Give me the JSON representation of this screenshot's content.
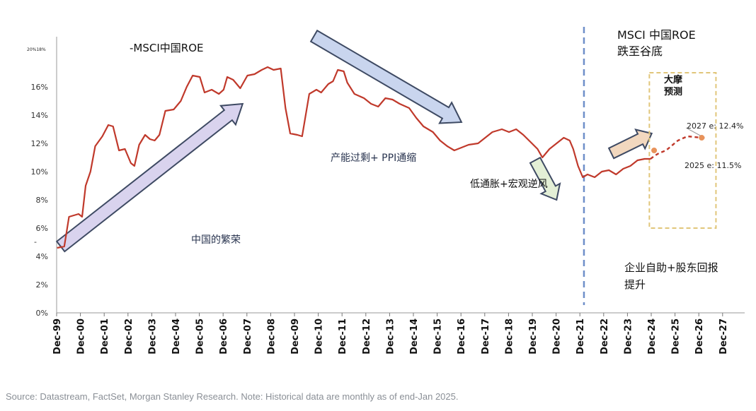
{
  "chart_data": {
    "type": "line",
    "series_label": "-MSCI中国ROE",
    "corner_label": "20%18%",
    "y_min_label": "-",
    "ylim": [
      0,
      18
    ],
    "yticks": [
      0,
      2,
      4,
      6,
      8,
      10,
      12,
      14,
      16
    ],
    "ytick_labels": [
      "0%",
      "2%",
      "4%",
      "6%",
      "8%",
      "10%",
      "12%",
      "14%",
      "16%"
    ],
    "x_labels": [
      "Dec-99",
      "Dec-00",
      "Dec-01",
      "Dec-02",
      "Dec-03",
      "Dec-04",
      "Dec-05",
      "Dec-06",
      "Dec-07",
      "Dec-08",
      "Dec-09",
      "Dec-10",
      "Dec-11",
      "Dec-12",
      "Dec-13",
      "Dec-14",
      "Dec-15",
      "Dec-16",
      "Dec-17",
      "Dec-18",
      "Dec-19",
      "Dec-20",
      "Dec-21",
      "Dec-22",
      "Dec-23",
      "Dec-24",
      "Dec-25",
      "Dec-26",
      "Dec-27"
    ],
    "line_color": "#c0392b",
    "historical": [
      [
        1999.9,
        4.6
      ],
      [
        2000.2,
        4.7
      ],
      [
        2000.4,
        6.8
      ],
      [
        2000.8,
        7.0
      ],
      [
        2000.95,
        6.8
      ],
      [
        2001.1,
        9.0
      ],
      [
        2001.3,
        10.0
      ],
      [
        2001.5,
        11.8
      ],
      [
        2001.8,
        12.5
      ],
      [
        2002.05,
        13.3
      ],
      [
        2002.25,
        13.2
      ],
      [
        2002.5,
        11.5
      ],
      [
        2002.75,
        11.6
      ],
      [
        2003.0,
        10.6
      ],
      [
        2003.15,
        10.4
      ],
      [
        2003.35,
        11.9
      ],
      [
        2003.6,
        12.6
      ],
      [
        2003.8,
        12.3
      ],
      [
        2004.0,
        12.2
      ],
      [
        2004.2,
        12.6
      ],
      [
        2004.45,
        14.3
      ],
      [
        2004.8,
        14.4
      ],
      [
        2005.1,
        15.0
      ],
      [
        2005.35,
        16.0
      ],
      [
        2005.6,
        16.8
      ],
      [
        2005.9,
        16.7
      ],
      [
        2006.1,
        15.6
      ],
      [
        2006.4,
        15.8
      ],
      [
        2006.7,
        15.5
      ],
      [
        2006.9,
        15.8
      ],
      [
        2007.05,
        16.7
      ],
      [
        2007.3,
        16.5
      ],
      [
        2007.6,
        15.9
      ],
      [
        2007.9,
        16.8
      ],
      [
        2008.2,
        16.9
      ],
      [
        2008.5,
        17.2
      ],
      [
        2008.75,
        17.4
      ],
      [
        2009.0,
        17.2
      ],
      [
        2009.3,
        17.3
      ],
      [
        2009.5,
        14.5
      ],
      [
        2009.7,
        12.7
      ],
      [
        2010.0,
        12.6
      ],
      [
        2010.2,
        12.5
      ],
      [
        2010.5,
        15.5
      ],
      [
        2010.8,
        15.8
      ],
      [
        2011.0,
        15.6
      ],
      [
        2011.3,
        16.2
      ],
      [
        2011.5,
        16.4
      ],
      [
        2011.7,
        17.2
      ],
      [
        2011.95,
        17.1
      ],
      [
        2012.1,
        16.3
      ],
      [
        2012.4,
        15.5
      ],
      [
        2012.8,
        15.2
      ],
      [
        2013.1,
        14.8
      ],
      [
        2013.4,
        14.6
      ],
      [
        2013.7,
        15.2
      ],
      [
        2014.0,
        15.1
      ],
      [
        2014.3,
        14.8
      ],
      [
        2014.7,
        14.5
      ],
      [
        2015.0,
        13.8
      ],
      [
        2015.3,
        13.2
      ],
      [
        2015.7,
        12.8
      ],
      [
        2016.0,
        12.2
      ],
      [
        2016.3,
        11.8
      ],
      [
        2016.6,
        11.5
      ],
      [
        2016.9,
        11.7
      ],
      [
        2017.2,
        11.9
      ],
      [
        2017.6,
        12.0
      ],
      [
        2017.9,
        12.4
      ],
      [
        2018.2,
        12.8
      ],
      [
        2018.6,
        13.0
      ],
      [
        2018.9,
        12.8
      ],
      [
        2019.2,
        13.0
      ],
      [
        2019.5,
        12.6
      ],
      [
        2019.8,
        12.1
      ],
      [
        2020.1,
        11.6
      ],
      [
        2020.3,
        11.0
      ],
      [
        2020.6,
        11.6
      ],
      [
        2020.9,
        12.0
      ],
      [
        2021.2,
        12.4
      ],
      [
        2021.45,
        12.2
      ],
      [
        2021.6,
        11.6
      ],
      [
        2021.8,
        10.4
      ],
      [
        2022.0,
        9.6
      ],
      [
        2022.2,
        9.8
      ],
      [
        2022.5,
        9.6
      ],
      [
        2022.8,
        10.0
      ],
      [
        2023.1,
        10.1
      ],
      [
        2023.4,
        9.8
      ],
      [
        2023.7,
        10.2
      ],
      [
        2024.0,
        10.4
      ],
      [
        2024.3,
        10.8
      ],
      [
        2024.6,
        10.9
      ],
      [
        2024.85,
        10.9
      ]
    ],
    "forecast": [
      [
        2024.85,
        10.9
      ],
      [
        2025.0,
        11.1
      ],
      [
        2025.2,
        11.3
      ],
      [
        2025.5,
        11.5
      ],
      [
        2026.0,
        12.2
      ],
      [
        2026.4,
        12.5
      ],
      [
        2027.0,
        12.4
      ],
      [
        2027.2,
        12.4
      ]
    ],
    "forecast_markers": [
      [
        2025.0,
        11.5
      ],
      [
        2027.0,
        12.4
      ]
    ],
    "forecast_label_2027": "2027 e: 12.4%",
    "forecast_label_2025": "2025 e: 11.5%",
    "divider_x": 2022.05,
    "divider_color": "#6f8fc9",
    "forecast_box": {
      "x_range": [
        2024.8,
        2027.6
      ],
      "y_range": [
        6.0,
        17.0
      ],
      "color": "#e1c67a",
      "title_line1": "大摩",
      "title_line2": "预测"
    },
    "annotations": {
      "trough_line1": "MSCI 中国ROE",
      "trough_line2": "跌至谷底",
      "prosperity": "中国的繁荣",
      "overcapacity": "产能过剩+ PPI通缩",
      "headwind": "低通胀+宏观逆风",
      "shareholder_line1": "企业自助+股东回报",
      "shareholder_line2": "提升"
    },
    "arrows": [
      {
        "from": [
          2000.05,
          4.7
        ],
        "to": [
          2007.7,
          14.8
        ],
        "color": "#d9d3ee"
      },
      {
        "from": [
          2010.7,
          19.6
        ],
        "to": [
          2016.9,
          13.5
        ],
        "color": "#c9d5ee"
      },
      {
        "from": [
          2020.0,
          10.8
        ],
        "to": [
          2020.9,
          8.0
        ],
        "color": "#e3efd6"
      },
      {
        "from": [
          2023.2,
          11.3
        ],
        "to": [
          2024.9,
          12.7
        ],
        "color": "#f2d8bf"
      }
    ]
  },
  "source": "Source: Datastream, FactSet, Morgan Stanley Research. Note: Historical data are monthly as of end-Jan 2025."
}
